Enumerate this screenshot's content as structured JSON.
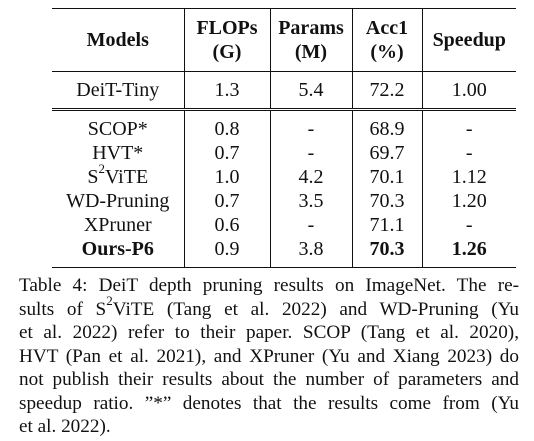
{
  "table": {
    "headers": [
      {
        "line1": "Models",
        "line2": ""
      },
      {
        "line1": "FLOPs",
        "line2": "(G)"
      },
      {
        "line1": "Params",
        "line2": "(M)"
      },
      {
        "line1": "Acc1",
        "line2": "(%)"
      },
      {
        "line1": "Speedup",
        "line2": ""
      }
    ],
    "baseline": {
      "model": "DeiT-Tiny",
      "flops": "1.3",
      "params": "5.4",
      "acc1": "72.2",
      "speedup": "1.00"
    },
    "rows": [
      {
        "model": "SCOP*",
        "flops": "0.8",
        "params": "-",
        "acc1": "68.9",
        "speedup": "-"
      },
      {
        "model": "HVT*",
        "flops": "0.7",
        "params": "-",
        "acc1": "69.7",
        "speedup": "-"
      },
      {
        "model_pre": "S",
        "model_sup": "2",
        "model_post": "ViTE",
        "flops": "1.0",
        "params": "4.2",
        "acc1": "70.1",
        "speedup": "1.12"
      },
      {
        "model": "WD-Pruning",
        "flops": "0.7",
        "params": "3.5",
        "acc1": "70.3",
        "speedup": "1.20"
      },
      {
        "model": "XPruner",
        "flops": "0.6",
        "params": "-",
        "acc1": "71.1",
        "speedup": "-"
      },
      {
        "model": "Ours-P6",
        "flops": "0.9",
        "params": "3.8",
        "acc1": "70.3",
        "speedup": "1.26"
      }
    ]
  },
  "caption": {
    "line1": "Table 4: DeiT depth pruning results on ImageNet. The re-",
    "line2_pre": "sults of S",
    "line2_sup": "2",
    "line2_post": "ViTE (Tang et al. 2022) and WD-Pruning (Yu",
    "line3": "et al. 2022) refer to their paper. SCOP (Tang et al. 2020),",
    "line4": "HVT (Pan et al. 2021), and XPruner (Yu and Xiang 2023) do",
    "line5": "not publish their results about the number of parameters and",
    "line6": "speedup ratio. ”*” denotes that the results come from (Yu",
    "line7": "et al. 2022)."
  }
}
